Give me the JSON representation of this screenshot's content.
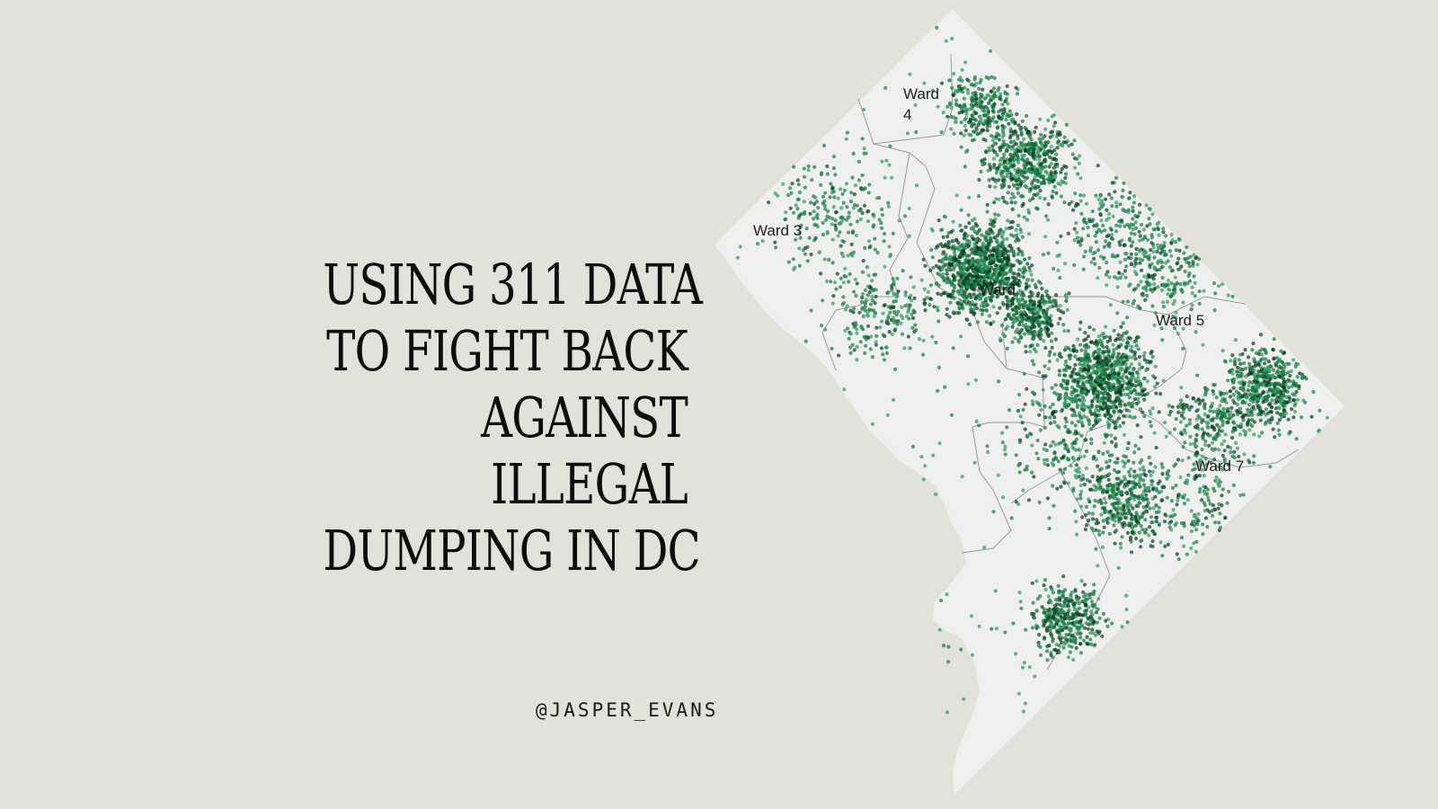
{
  "headline": {
    "lines": [
      "USING 311 DATA",
      "TO FIGHT BACK",
      "AGAINST",
      "ILLEGAL",
      "DUMPING IN DC"
    ]
  },
  "handle": "@JASPER_EVANS",
  "map": {
    "region": "Washington, DC",
    "ward_labels": {
      "ward4_line1": "Ward",
      "ward4_line2": "4",
      "ward3": "Ward 3",
      "ward1": "Ward",
      "ward5": "Ward 5",
      "ward7": "Ward 7"
    },
    "colors": {
      "background": "#e2e1da",
      "land": "#efefef",
      "boundary": "#9a9a9a",
      "point_light": "#2e9a5e",
      "point_mid": "#137a40",
      "point_dark": "#063d1c"
    }
  }
}
